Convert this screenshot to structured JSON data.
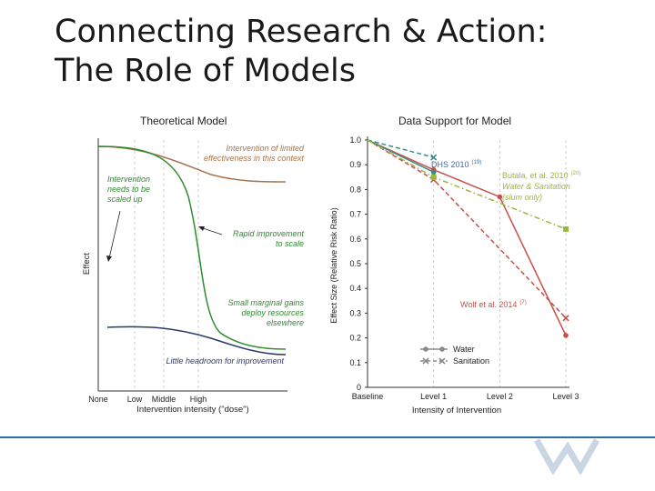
{
  "slide": {
    "title_line1": "Connecting Research & Action:",
    "title_line2": "The Role of Models",
    "left_caption": "Theoretical Model",
    "right_caption": "Data Support for Model"
  },
  "chart_data": [
    {
      "type": "line",
      "title": "Theoretical Model",
      "xlabel": "Intervention intensity (\"dose\")",
      "ylabel": "Effect",
      "x_ticks": [
        "None",
        "Low",
        "Middle",
        "High"
      ],
      "series": [
        {
          "name": "Intervention of limited effectiveness in this context",
          "color": "#a8734a"
        },
        {
          "name": "Rapid improvement to scale",
          "color": "#2e8b2e"
        },
        {
          "name": "Little headroom for improvement",
          "color": "#2a3a6a"
        }
      ],
      "annotations": [
        {
          "text": [
            "Intervention of limited",
            "effectiveness in this context"
          ],
          "color": "#a8734a"
        },
        {
          "text": [
            "Intervention",
            "needs to be",
            "scaled up"
          ],
          "color": "#2e8b2e"
        },
        {
          "text": [
            "Rapid improvement",
            "to scale"
          ],
          "color": "#2e8b2e"
        },
        {
          "text": [
            "Small marginal gains",
            "deploy resources",
            "elsewhere"
          ],
          "color": "#2e8b2e"
        },
        {
          "text": [
            "Little headroom for improvement"
          ],
          "color": "#2a3a6a"
        }
      ]
    },
    {
      "type": "line",
      "title": "Data Support for Model",
      "xlabel": "Intensity of Intervention",
      "ylabel": "Effect Size (Relative Risk Ratio)",
      "categories": [
        "Baseline",
        "Level 1",
        "Level 2",
        "Level 3"
      ],
      "ylim": [
        0,
        1.0
      ],
      "y_ticks": [
        "0",
        "0.1",
        "0.2",
        "0.3",
        "0.4",
        "0.5",
        "0.6",
        "0.7",
        "0.8",
        "0.9",
        "1.0"
      ],
      "series": [
        {
          "name": "Water",
          "study": "Wolf et al. 2014",
          "color": "#c9504a",
          "style": "solid",
          "marker": "circle",
          "points": [
            [
              0,
              1.0
            ],
            [
              1,
              0.88
            ],
            [
              2,
              0.77
            ],
            [
              3,
              0.21
            ]
          ]
        },
        {
          "name": "Sanitation",
          "study": "Wolf et al. 2014",
          "color": "#c9504a",
          "style": "dashed",
          "marker": "x",
          "points": [
            [
              0,
              1.0
            ],
            [
              1,
              0.84
            ],
            [
              3,
              0.28
            ]
          ]
        },
        {
          "name": "Water",
          "study": "DHS 2010",
          "color": "#3a8a8a",
          "style": "solid",
          "marker": "circle",
          "points": [
            [
              0,
              1.0
            ],
            [
              1,
              0.87
            ]
          ]
        },
        {
          "name": "Sanitation",
          "study": "DHS 2010",
          "color": "#3a8a8a",
          "style": "dashed",
          "marker": "x",
          "points": [
            [
              0,
              1.0
            ],
            [
              1,
              0.93
            ]
          ]
        },
        {
          "name": "Water & Sanitation (slum only)",
          "study": "Butala, et al. 2010",
          "color": "#9ab83a",
          "style": "dashdot",
          "marker": "square",
          "points": [
            [
              0,
              1.0
            ],
            [
              1,
              0.85
            ],
            [
              3,
              0.64
            ]
          ]
        }
      ],
      "annotations": [
        {
          "text": "DHS 2010",
          "sup": "(19)",
          "color": "#3a6aa0"
        },
        {
          "text": "Butala, et al. 2010",
          "sup": "(20)",
          "color": "#9ab83a"
        },
        {
          "text": "Water & Sanitation",
          "color": "#9ab83a"
        },
        {
          "text": "(slum only)",
          "color": "#9ab83a"
        },
        {
          "text": "Wolf et al. 2014",
          "sup": "(7)",
          "color": "#c9504a"
        }
      ],
      "legend": {
        "placement": "bottom-left",
        "entries": [
          "Water",
          "Sanitation"
        ]
      }
    }
  ]
}
